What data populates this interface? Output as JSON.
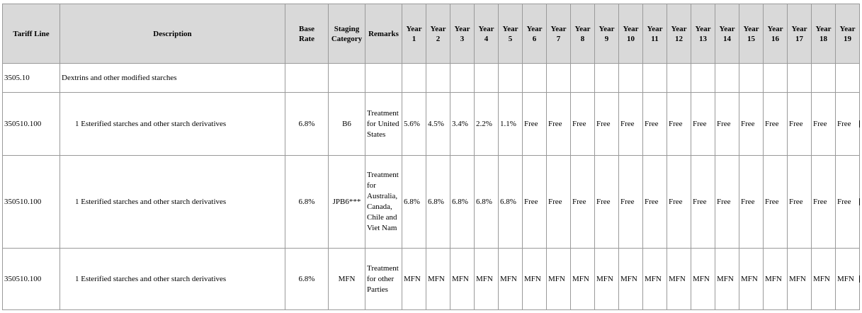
{
  "headers": {
    "tariff_line": "Tariff Line",
    "description": "Description",
    "base_rate": [
      "Base",
      "Rate"
    ],
    "staging_category": [
      "Staging",
      "Category"
    ],
    "remarks": "Remarks",
    "year_word": "Year",
    "years": [
      "1",
      "2",
      "3",
      "4",
      "5",
      "6",
      "7",
      "8",
      "9",
      "10",
      "11",
      "12",
      "13",
      "14",
      "15",
      "16",
      "17",
      "18",
      "19"
    ]
  },
  "rows": [
    {
      "tariff_line": "3505.10",
      "description": "Dextrins and other modified starches",
      "base_rate": "",
      "staging": "",
      "remarks": [],
      "years": [
        "",
        "",
        "",
        "",
        "",
        "",
        "",
        "",
        "",
        "",
        "",
        "",
        "",
        "",
        "",
        "",
        "",
        "",
        ""
      ]
    },
    {
      "tariff_line": "350510.100",
      "description": "1 Esterified starches and other starch derivatives",
      "base_rate": "6.8%",
      "staging": "B6",
      "remarks": [
        "Treatment",
        "for United",
        "States"
      ],
      "years": [
        "5.6%",
        "4.5%",
        "3.4%",
        "2.2%",
        "1.1%",
        "Free",
        "Free",
        "Free",
        "Free",
        "Free",
        "Free",
        "Free",
        "Free",
        "Free",
        "Free",
        "Free",
        "Free",
        "Free",
        "Free"
      ]
    },
    {
      "tariff_line": "350510.100",
      "description": "1 Esterified starches and other starch derivatives",
      "base_rate": "6.8%",
      "staging": "JPB6***",
      "remarks": [
        "Treatment",
        "for",
        "Australia,",
        "Canada,",
        "Chile and",
        "Viet Nam"
      ],
      "years": [
        "6.8%",
        "6.8%",
        "6.8%",
        "6.8%",
        "6.8%",
        "Free",
        "Free",
        "Free",
        "Free",
        "Free",
        "Free",
        "Free",
        "Free",
        "Free",
        "Free",
        "Free",
        "Free",
        "Free",
        "Free"
      ]
    },
    {
      "tariff_line": "350510.100",
      "description": "1 Esterified starches and other starch derivatives",
      "base_rate": "6.8%",
      "staging": "MFN",
      "remarks": [
        "Treatment",
        "for other",
        "Parties"
      ],
      "years": [
        "MFN",
        "MFN",
        "MFN",
        "MFN",
        "MFN",
        "MFN",
        "MFN",
        "MFN",
        "MFN",
        "MFN",
        "MFN",
        "MFN",
        "MFN",
        "MFN",
        "MFN",
        "MFN",
        "MFN",
        "MFN",
        "MFN"
      ]
    }
  ]
}
